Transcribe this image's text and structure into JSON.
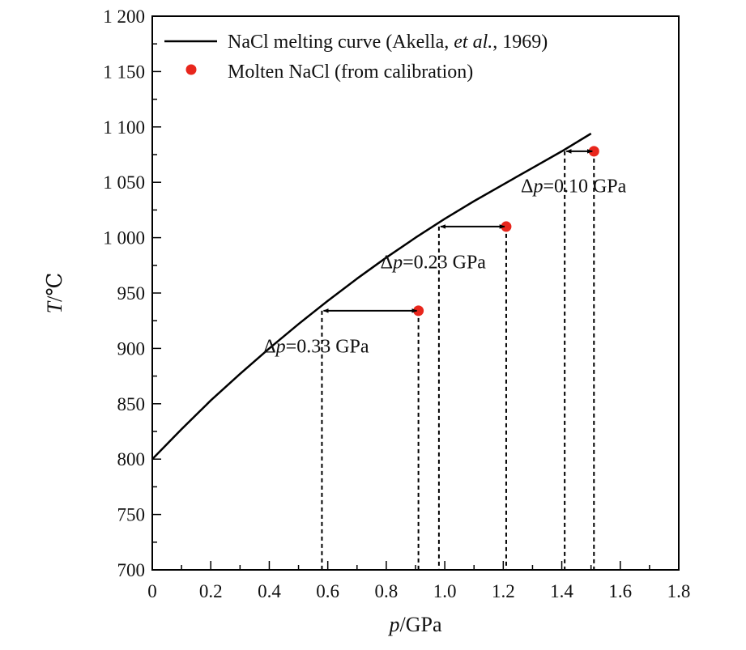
{
  "chart_data": {
    "type": "line",
    "xlabel": {
      "var": "p",
      "unit": "/GPa"
    },
    "ylabel": {
      "var": "T",
      "unit": "/℃"
    },
    "xlim": [
      0,
      1.8
    ],
    "ylim": [
      700,
      1200
    ],
    "xticks": [
      0,
      0.2,
      0.4,
      0.6,
      0.8,
      1.0,
      1.2,
      1.4,
      1.6,
      1.8
    ],
    "xtick_labels": [
      "0",
      "0.2",
      "0.4",
      "0.6",
      "0.8",
      "1.0",
      "1.2",
      "1.4",
      "1.6",
      "1.8"
    ],
    "yticks": [
      700,
      750,
      800,
      850,
      900,
      950,
      1000,
      1050,
      1100,
      1150,
      1200
    ],
    "ytick_labels": [
      "700",
      "750",
      "800",
      "850",
      "900",
      "950",
      "1 000",
      "1 050",
      "1 100",
      "1 150",
      "1 200"
    ],
    "grid": false,
    "legend_position": "top-left",
    "series": [
      {
        "name": "NaCl melting curve (Akella, et al., 1969)",
        "kind": "line",
        "color": "#000000",
        "x": [
          0,
          0.1,
          0.2,
          0.3,
          0.4,
          0.5,
          0.6,
          0.7,
          0.8,
          0.9,
          1.0,
          1.1,
          1.2,
          1.3,
          1.4,
          1.5
        ],
        "y": [
          800,
          827,
          853,
          877,
          900,
          922,
          943,
          963,
          982,
          1000,
          1017,
          1033,
          1048,
          1063,
          1078,
          1094
        ]
      },
      {
        "name": "Molten NaCl (from calibration)",
        "kind": "scatter",
        "color": "#e8261c",
        "x": [
          0.91,
          1.21,
          1.51
        ],
        "y": [
          934,
          1010,
          1078
        ]
      }
    ],
    "annotations": [
      {
        "text_prefix": "Δ",
        "text_var": "p",
        "text_value": "=0.33 GPa",
        "from_x": 0.91,
        "to_x": 0.58,
        "y": 934,
        "label_x": 0.38,
        "label_y": 902
      },
      {
        "text_prefix": "Δ",
        "text_var": "p",
        "text_value": "=0.23 GPa",
        "from_x": 1.21,
        "to_x": 0.98,
        "y": 1010,
        "label_x": 0.78,
        "label_y": 978
      },
      {
        "text_prefix": "Δ",
        "text_var": "p",
        "text_value": "=0.10 GPa",
        "from_x": 1.51,
        "to_x": 1.41,
        "y": 1078,
        "label_x": 1.26,
        "label_y": 1047
      }
    ]
  }
}
